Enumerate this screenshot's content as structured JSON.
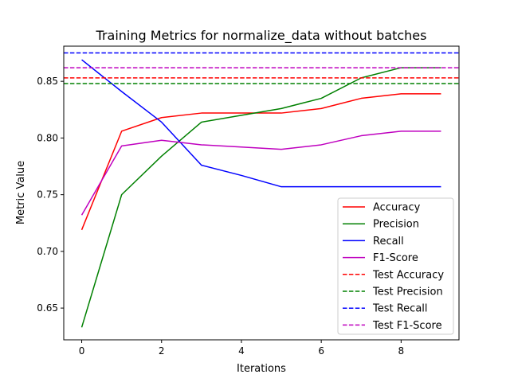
{
  "chart_data": {
    "type": "line",
    "title": "Training Metrics for normalize_data without batches",
    "xlabel": "Iterations",
    "ylabel": "Metric Value",
    "xlim": [
      -0.45,
      9.45
    ],
    "ylim": [
      0.622,
      0.881
    ],
    "xticks": [
      0,
      2,
      4,
      6,
      8
    ],
    "yticks": [
      0.65,
      0.7,
      0.75,
      0.8,
      0.85
    ],
    "xtick_labels": [
      "0",
      "2",
      "4",
      "6",
      "8"
    ],
    "ytick_labels": [
      "0.65",
      "0.70",
      "0.75",
      "0.80",
      "0.85"
    ],
    "legend_position": "lower-right",
    "grid": false,
    "x": [
      0,
      1,
      2,
      3,
      4,
      5,
      6,
      7,
      8,
      9
    ],
    "series": [
      {
        "name": "Accuracy",
        "color": "#ff0000",
        "style": "solid",
        "values": [
          0.719,
          0.806,
          0.818,
          0.822,
          0.822,
          0.822,
          0.826,
          0.835,
          0.839,
          0.839
        ]
      },
      {
        "name": "Precision",
        "color": "#008000",
        "style": "solid",
        "values": [
          0.633,
          0.75,
          0.784,
          0.814,
          0.82,
          0.826,
          0.835,
          0.853,
          0.862,
          0.862
        ]
      },
      {
        "name": "Recall",
        "color": "#0000ff",
        "style": "solid",
        "values": [
          0.869,
          0.841,
          0.814,
          0.776,
          0.767,
          0.757,
          0.757,
          0.757,
          0.757,
          0.757
        ]
      },
      {
        "name": "F1-Score",
        "color": "#bf00bf",
        "style": "solid",
        "values": [
          0.732,
          0.793,
          0.798,
          0.794,
          0.792,
          0.79,
          0.794,
          0.802,
          0.806,
          0.806
        ]
      },
      {
        "name": "Test Accuracy",
        "color": "#ff0000",
        "style": "dashed",
        "hline": 0.853
      },
      {
        "name": "Test Precision",
        "color": "#008000",
        "style": "dashed",
        "hline": 0.848
      },
      {
        "name": "Test Recall",
        "color": "#0000ff",
        "style": "dashed",
        "hline": 0.875
      },
      {
        "name": "Test F1-Score",
        "color": "#bf00bf",
        "style": "dashed",
        "hline": 0.862
      }
    ]
  }
}
